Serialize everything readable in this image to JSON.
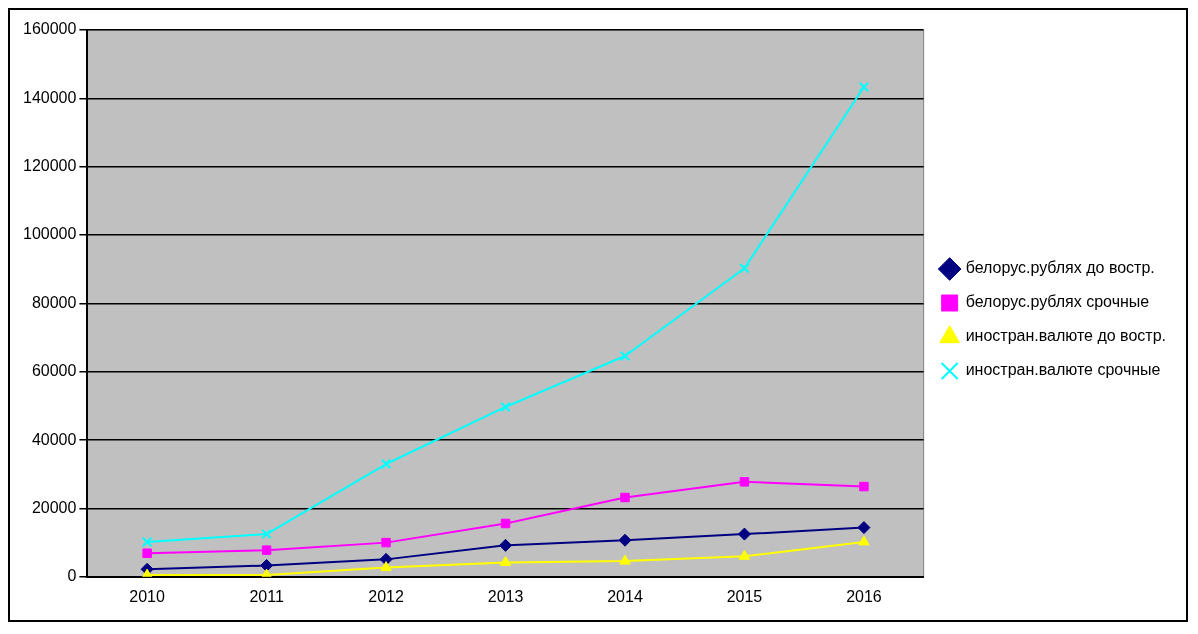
{
  "chart_data": {
    "type": "line",
    "categories": [
      "2010",
      "2011",
      "2012",
      "2013",
      "2014",
      "2015",
      "2016"
    ],
    "series": [
      {
        "name": "белорус.рублях до востр.",
        "color": "#000080",
        "marker": "diamond",
        "values": [
          2200,
          3300,
          5100,
          9200,
          10700,
          12500,
          14400
        ]
      },
      {
        "name": "белорус.рублях срочные",
        "color": "#ff00ff",
        "marker": "square",
        "values": [
          6900,
          7800,
          10000,
          15600,
          23200,
          27800,
          26400
        ]
      },
      {
        "name": "иностран.валюте до востр.",
        "color": "#ffff00",
        "marker": "triangle",
        "values": [
          500,
          500,
          2700,
          4200,
          4600,
          6000,
          10200
        ]
      },
      {
        "name": "иностран.валюте срочные",
        "color": "#00ffff",
        "marker": "cross",
        "values": [
          10200,
          12500,
          33000,
          49700,
          64600,
          90300,
          143300
        ]
      }
    ],
    "ylim": [
      0,
      160000
    ],
    "yticks": [
      0,
      20000,
      40000,
      60000,
      80000,
      100000,
      120000,
      140000,
      160000
    ],
    "grid": "y",
    "legend": "right"
  }
}
